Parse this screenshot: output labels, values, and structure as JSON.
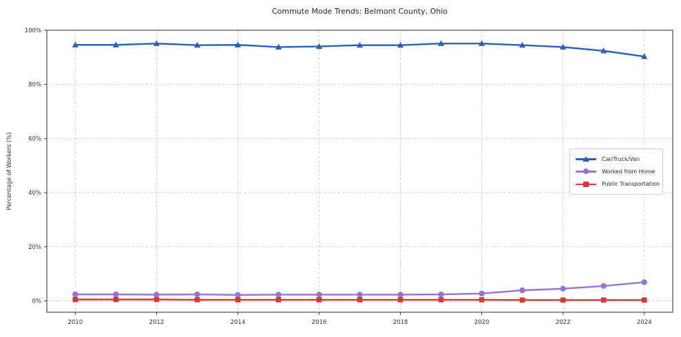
{
  "title": "Commute Mode Trends: Belmont County, Ohio",
  "chart_data": {
    "type": "line",
    "title": "Commute Mode Trends: Belmont County, Ohio",
    "xlabel": "",
    "ylabel": "Percentage of Workers (%)",
    "x": [
      2010,
      2011,
      2012,
      2013,
      2014,
      2015,
      2016,
      2017,
      2018,
      2019,
      2020,
      2021,
      2022,
      2023,
      2024
    ],
    "series": [
      {
        "name": "Car/Truck/Van",
        "color": "#2b5fba",
        "marker": "triangle",
        "values": [
          94.6,
          94.6,
          95.1,
          94.5,
          94.6,
          93.8,
          94.0,
          94.5,
          94.5,
          95.1,
          95.1,
          94.5,
          93.8,
          92.4,
          90.3
        ]
      },
      {
        "name": "Worked from Home",
        "color": "#9673db",
        "marker": "circle",
        "values": [
          2.4,
          2.4,
          2.3,
          2.4,
          2.2,
          2.3,
          2.3,
          2.3,
          2.3,
          2.4,
          2.7,
          3.9,
          4.5,
          5.5,
          6.9
        ]
      },
      {
        "name": "Public Transportation",
        "color": "#da3832",
        "marker": "square",
        "values": [
          0.5,
          0.5,
          0.5,
          0.4,
          0.4,
          0.4,
          0.4,
          0.4,
          0.4,
          0.4,
          0.4,
          0.3,
          0.3,
          0.3,
          0.3
        ]
      }
    ],
    "x_ticks": [
      2010,
      2012,
      2014,
      2016,
      2018,
      2020,
      2022,
      2024
    ],
    "x_tick_labels": [
      "2010",
      "2012",
      "2014",
      "2016",
      "2018",
      "2020",
      "2022",
      "2024"
    ],
    "y_ticks": [
      0,
      20,
      40,
      60,
      80,
      100
    ],
    "y_tick_labels": [
      "0%",
      "20%",
      "40%",
      "60%",
      "80%",
      "100%"
    ],
    "xlim": [
      2009.3,
      2024.7
    ],
    "ylim": [
      -4.2,
      100
    ],
    "grid": true,
    "grid_style": "dashed",
    "legend_position": "center-right"
  },
  "colors": {
    "background": "#ffffff",
    "grid": "#cbcbcb",
    "spine": "#2b2b2b",
    "tick_text": "#333333",
    "title_text": "#262626"
  }
}
